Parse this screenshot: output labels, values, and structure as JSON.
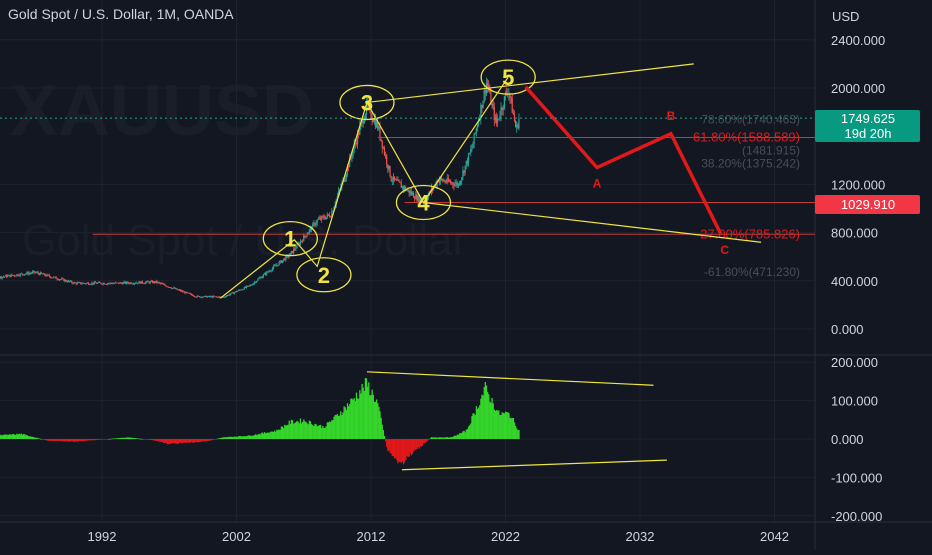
{
  "header": {
    "title": "Gold Spot / U.S. Dollar, 1M, OANDA"
  },
  "colors": {
    "background": "#131722",
    "axis_text": "#d1d4dc",
    "grid": "#1e222d",
    "bull": "#26a69a",
    "bear": "#ef5350",
    "wave": "#f0e442",
    "projection": "#e0191b",
    "fib_line": "#c23b3b",
    "osc_pos": "#35d62b",
    "osc_neg": "#e0191b",
    "price_badge": "#089981",
    "level_badge": "#f23645"
  },
  "chart_data": [
    {
      "type": "candlestick",
      "title": "Gold Spot / U.S. Dollar, 1M, OANDA",
      "watermark": [
        "XAUUSD",
        "Gold Spot / U.S. Dollar"
      ],
      "y_axis": {
        "unit": "USD",
        "ticks": [
          0,
          400,
          800,
          1200,
          2000,
          2400
        ],
        "tick_labels": [
          "0.000",
          "400.000",
          "800.000",
          "1200.000",
          "2000.000",
          "2400.000"
        ]
      },
      "x_axis": {
        "ticks": [
          1992,
          2002,
          2012,
          2022,
          2032,
          2042
        ]
      },
      "price_path": [
        [
          1982,
          395
        ],
        [
          1987,
          470
        ],
        [
          1990,
          380
        ],
        [
          1993,
          380
        ],
        [
          1996,
          390
        ],
        [
          1999,
          270
        ],
        [
          2001,
          265
        ],
        [
          2003,
          360
        ],
        [
          2006,
          620
        ],
        [
          2008,
          900
        ],
        [
          2009,
          950
        ],
        [
          2010,
          1250
        ],
        [
          2011.7,
          1850
        ],
        [
          2012.5,
          1680
        ],
        [
          2013.5,
          1250
        ],
        [
          2015.9,
          1050
        ],
        [
          2017,
          1240
        ],
        [
          2018.5,
          1200
        ],
        [
          2019.5,
          1500
        ],
        [
          2020.6,
          2050
        ],
        [
          2021.3,
          1700
        ],
        [
          2022.2,
          2000
        ],
        [
          2022.8,
          1650
        ],
        [
          2023,
          1749
        ]
      ],
      "price_badge": {
        "value": "1749.625",
        "countdown": "19d 20h"
      },
      "level_badge": {
        "value": "1029.910"
      },
      "fib_labels": [
        {
          "label": "78.60%(1740.463)",
          "price": 1740.463
        },
        {
          "label": "61.80%(1588.589)",
          "price": 1588.589
        },
        {
          "label": "(1481.915)",
          "price": 1481.915
        },
        {
          "label": "38.20%(1375.242)",
          "price": 1375.242
        },
        {
          "label": "-27.00%(785.826)",
          "price": 785.826
        },
        {
          "label": "-61.80%(471.230)",
          "price": 471.23
        }
      ],
      "elliott_waves": [
        {
          "label": "1",
          "year": 2006,
          "price": 750
        },
        {
          "label": "2",
          "year": 2008.5,
          "price": 450
        },
        {
          "label": "3",
          "year": 2011.7,
          "price": 1880
        },
        {
          "label": "4",
          "year": 2015.9,
          "price": 1050
        },
        {
          "label": "5",
          "year": 2022.2,
          "price": 2090
        }
      ],
      "wave_path": [
        [
          2000.8,
          255
        ],
        [
          2006.3,
          740
        ],
        [
          2008.0,
          520
        ],
        [
          2011.7,
          1880
        ],
        [
          2015.9,
          1050
        ],
        [
          2022.2,
          2090
        ]
      ],
      "channel_lines": [
        {
          "from": [
            2011.7,
            1880
          ],
          "to": [
            2036,
            2200
          ]
        },
        {
          "from": [
            2015.9,
            1050
          ],
          "to": [
            2041,
            720
          ]
        }
      ],
      "corrective_projection": [
        {
          "year": 2023.5,
          "price": 2010
        },
        {
          "label": "A",
          "year": 2028.8,
          "price": 1340
        },
        {
          "label": "B",
          "year": 2034.3,
          "price": 1620
        },
        {
          "label": "C",
          "year": 2038.0,
          "price": 790
        }
      ]
    },
    {
      "type": "histogram",
      "y_axis": {
        "ticks": [
          -200,
          -100,
          0,
          100,
          200
        ],
        "tick_labels": [
          "-200.000",
          "-100.000",
          "0.000",
          "100.000",
          "200.000"
        ]
      },
      "x_axis": {
        "ticks": [
          1992,
          2002,
          2012,
          2022,
          2032,
          2042
        ]
      },
      "series_path": [
        [
          1982,
          -15
        ],
        [
          1984,
          10
        ],
        [
          1986,
          15
        ],
        [
          1988,
          -5
        ],
        [
          1990,
          -8
        ],
        [
          1994,
          5
        ],
        [
          1996,
          -5
        ],
        [
          1997,
          -15
        ],
        [
          1999,
          -10
        ],
        [
          2000,
          -5
        ],
        [
          2001,
          5
        ],
        [
          2003,
          10
        ],
        [
          2005,
          25
        ],
        [
          2006,
          50
        ],
        [
          2007,
          55
        ],
        [
          2008.5,
          35
        ],
        [
          2009.5,
          70
        ],
        [
          2010.5,
          110
        ],
        [
          2011.7,
          165
        ],
        [
          2012.5,
          105
        ],
        [
          2013.2,
          -30
        ],
        [
          2014.2,
          -75
        ],
        [
          2015,
          -45
        ],
        [
          2016.5,
          5
        ],
        [
          2018,
          5
        ],
        [
          2019.1,
          25
        ],
        [
          2020.5,
          150
        ],
        [
          2021.5,
          75
        ],
        [
          2022.3,
          75
        ],
        [
          2023,
          25
        ]
      ],
      "divergence_lines": [
        {
          "from": [
            2011.7,
            175
          ],
          "to": [
            2033,
            140
          ]
        },
        {
          "from": [
            2014.3,
            -80
          ],
          "to": [
            2034,
            -55
          ]
        }
      ]
    }
  ]
}
